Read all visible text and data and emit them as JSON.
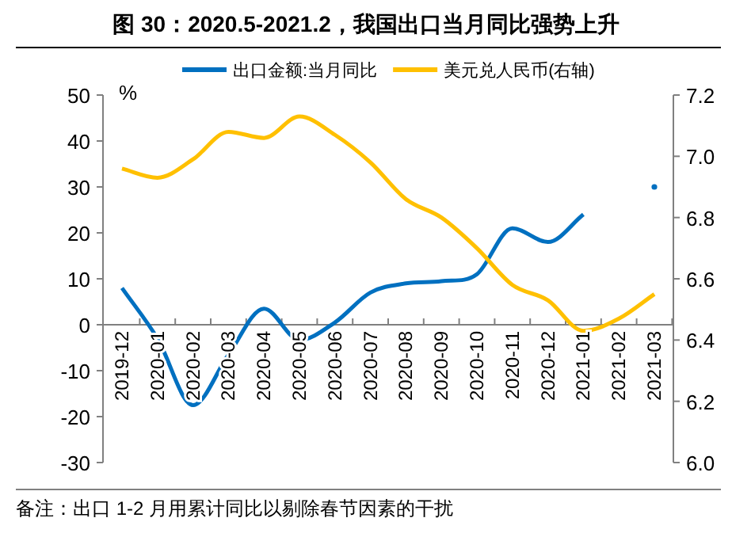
{
  "chart_data": {
    "type": "line",
    "title": "图 30：2020.5-2021.2，我国出口当月同比强势上升",
    "ylabel": "%",
    "categories": [
      "2019-12",
      "2020-01",
      "2020-02",
      "2020-03",
      "2020-04",
      "2020-05",
      "2020-06",
      "2020-07",
      "2020-08",
      "2020-09",
      "2020-10",
      "2020-11",
      "2020-12",
      "2021-01",
      "2021-02",
      "2021-03"
    ],
    "series": [
      {
        "name": "出口金额:当月同比",
        "color": "#0070c0",
        "values": [
          8,
          -3,
          -17.5,
          -6.5,
          3.5,
          -3.3,
          0.5,
          7,
          9,
          9.5,
          11,
          21,
          18,
          24,
          null,
          30
        ]
      },
      {
        "name": "美元兑人民币(右轴)",
        "color": "#ffc000",
        "axis": "y2",
        "values": [
          6.96,
          6.93,
          6.99,
          7.08,
          7.06,
          7.13,
          7.07,
          6.98,
          6.86,
          6.8,
          6.7,
          6.58,
          6.53,
          6.43,
          6.47,
          6.55
        ]
      }
    ],
    "ylim": [
      -30,
      50
    ],
    "yticks": [
      -30,
      -20,
      -10,
      0,
      10,
      20,
      30,
      40,
      50
    ],
    "y2lim": [
      6.0,
      7.2
    ],
    "y2ticks": [
      {
        "value": 6.0,
        "label": "6.0"
      },
      6.2,
      6.4,
      6.6,
      6.8,
      {
        "value": 7.0,
        "label": "7.0"
      },
      7.2
    ],
    "legend": "top",
    "annotations": [
      "备注：出口 1-2 月用累计同比以剔除春节因素的干扰"
    ]
  }
}
